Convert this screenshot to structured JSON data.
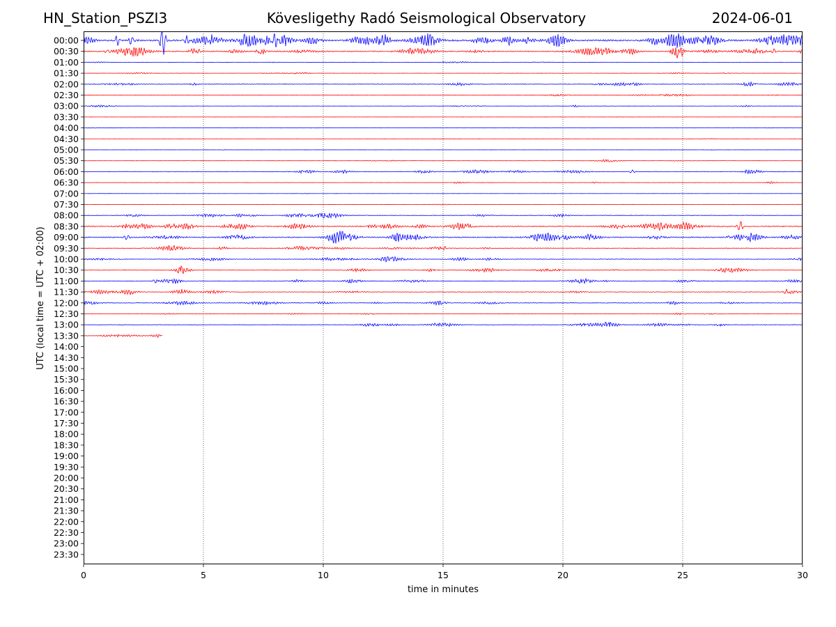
{
  "header": {
    "station": "HN_Station_PSZI3",
    "title": "Kövesligethy Radó Seismological Observatory",
    "date": "2024-06-01"
  },
  "chart_data": {
    "type": "line",
    "title": "Kövesligethy Radó Seismological Observatory",
    "xlabel": "time in minutes",
    "ylabel": "UTC (local time = UTC + 02:00)",
    "xlim": [
      0,
      30
    ],
    "x_ticks": [
      "0",
      "5",
      "10",
      "15",
      "20",
      "25",
      "30"
    ],
    "x_tick_values": [
      0,
      5,
      10,
      15,
      20,
      25,
      30
    ],
    "vertical_gridlines_at": [
      5,
      10,
      15,
      20,
      25
    ],
    "row_labels": [
      "00:00",
      "00:30",
      "01:00",
      "01:30",
      "02:00",
      "02:30",
      "03:00",
      "03:30",
      "04:00",
      "04:30",
      "05:00",
      "05:30",
      "06:00",
      "06:30",
      "07:00",
      "07:30",
      "08:00",
      "08:30",
      "09:00",
      "09:30",
      "10:00",
      "10:30",
      "11:00",
      "11:30",
      "12:00",
      "12:30",
      "13:00",
      "13:30",
      "14:00",
      "14:30",
      "15:00",
      "15:30",
      "16:00",
      "16:30",
      "17:00",
      "17:30",
      "18:00",
      "18:30",
      "19:00",
      "19:30",
      "20:00",
      "20:30",
      "21:00",
      "21:30",
      "22:00",
      "22:30",
      "23:00",
      "23:30"
    ],
    "colors": {
      "even_rows": "#0000ff",
      "odd_rows": "#ff0000",
      "grid": "#000000"
    },
    "traces": [
      {
        "row": "00:00",
        "end_minute": 30,
        "activity": "very high"
      },
      {
        "row": "00:30",
        "end_minute": 30,
        "activity": "high"
      },
      {
        "row": "01:00",
        "end_minute": 30,
        "activity": "low"
      },
      {
        "row": "01:30",
        "end_minute": 30,
        "activity": "low"
      },
      {
        "row": "02:00",
        "end_minute": 30,
        "activity": "medium"
      },
      {
        "row": "02:30",
        "end_minute": 30,
        "activity": "low"
      },
      {
        "row": "03:00",
        "end_minute": 30,
        "activity": "low"
      },
      {
        "row": "03:30",
        "end_minute": 30,
        "activity": "very low"
      },
      {
        "row": "04:00",
        "end_minute": 30,
        "activity": "very low"
      },
      {
        "row": "04:30",
        "end_minute": 30,
        "activity": "very low"
      },
      {
        "row": "05:00",
        "end_minute": 30,
        "activity": "very low"
      },
      {
        "row": "05:30",
        "end_minute": 30,
        "activity": "low"
      },
      {
        "row": "06:00",
        "end_minute": 30,
        "activity": "medium"
      },
      {
        "row": "06:30",
        "end_minute": 30,
        "activity": "low"
      },
      {
        "row": "07:00",
        "end_minute": 30,
        "activity": "very low"
      },
      {
        "row": "07:30",
        "end_minute": 30,
        "activity": "very low"
      },
      {
        "row": "08:00",
        "end_minute": 30,
        "activity": "medium"
      },
      {
        "row": "08:30",
        "end_minute": 30,
        "activity": "high"
      },
      {
        "row": "09:00",
        "end_minute": 30,
        "activity": "high"
      },
      {
        "row": "09:30",
        "end_minute": 30,
        "activity": "medium"
      },
      {
        "row": "10:00",
        "end_minute": 30,
        "activity": "medium"
      },
      {
        "row": "10:30",
        "end_minute": 30,
        "activity": "medium"
      },
      {
        "row": "11:00",
        "end_minute": 30,
        "activity": "medium"
      },
      {
        "row": "11:30",
        "end_minute": 30,
        "activity": "medium"
      },
      {
        "row": "12:00",
        "end_minute": 30,
        "activity": "medium"
      },
      {
        "row": "12:30",
        "end_minute": 30,
        "activity": "low"
      },
      {
        "row": "13:00",
        "end_minute": 30,
        "activity": "medium"
      },
      {
        "row": "13:30",
        "end_minute": 3.3,
        "activity": "low"
      }
    ],
    "events": [
      {
        "row": "00:00",
        "minute": 1.4,
        "amplitude": 1.2
      },
      {
        "row": "00:00",
        "minute": 2.0,
        "amplitude": 1.0
      },
      {
        "row": "00:00",
        "minute": 3.3,
        "amplitude": 4.0
      },
      {
        "row": "00:00",
        "minute": 4.3,
        "amplitude": 1.0
      },
      {
        "row": "00:00",
        "minute": 5.3,
        "amplitude": 1.2
      },
      {
        "row": "00:00",
        "minute": 8.0,
        "amplitude": 1.6
      },
      {
        "row": "00:00",
        "minute": 18.5,
        "amplitude": 0.6
      },
      {
        "row": "00:00",
        "minute": 24.8,
        "amplitude": 0.8
      },
      {
        "row": "00:00",
        "minute": 28.6,
        "amplitude": 0.6
      },
      {
        "row": "00:30",
        "minute": 1.0,
        "amplitude": 0.4
      },
      {
        "row": "00:30",
        "minute": 4.8,
        "amplitude": 0.4
      },
      {
        "row": "00:30",
        "minute": 28.8,
        "amplitude": 0.5
      },
      {
        "row": "06:00",
        "minute": 22.9,
        "amplitude": 0.4
      },
      {
        "row": "08:30",
        "minute": 27.4,
        "amplitude": 1.3
      },
      {
        "row": "09:00",
        "minute": 1.8,
        "amplitude": 0.6
      },
      {
        "row": "09:30",
        "minute": 15.0,
        "amplitude": 0.35
      },
      {
        "row": "11:00",
        "minute": 3.0,
        "amplitude": 0.4
      },
      {
        "row": "11:30",
        "minute": 29.3,
        "amplitude": 0.35
      }
    ]
  }
}
